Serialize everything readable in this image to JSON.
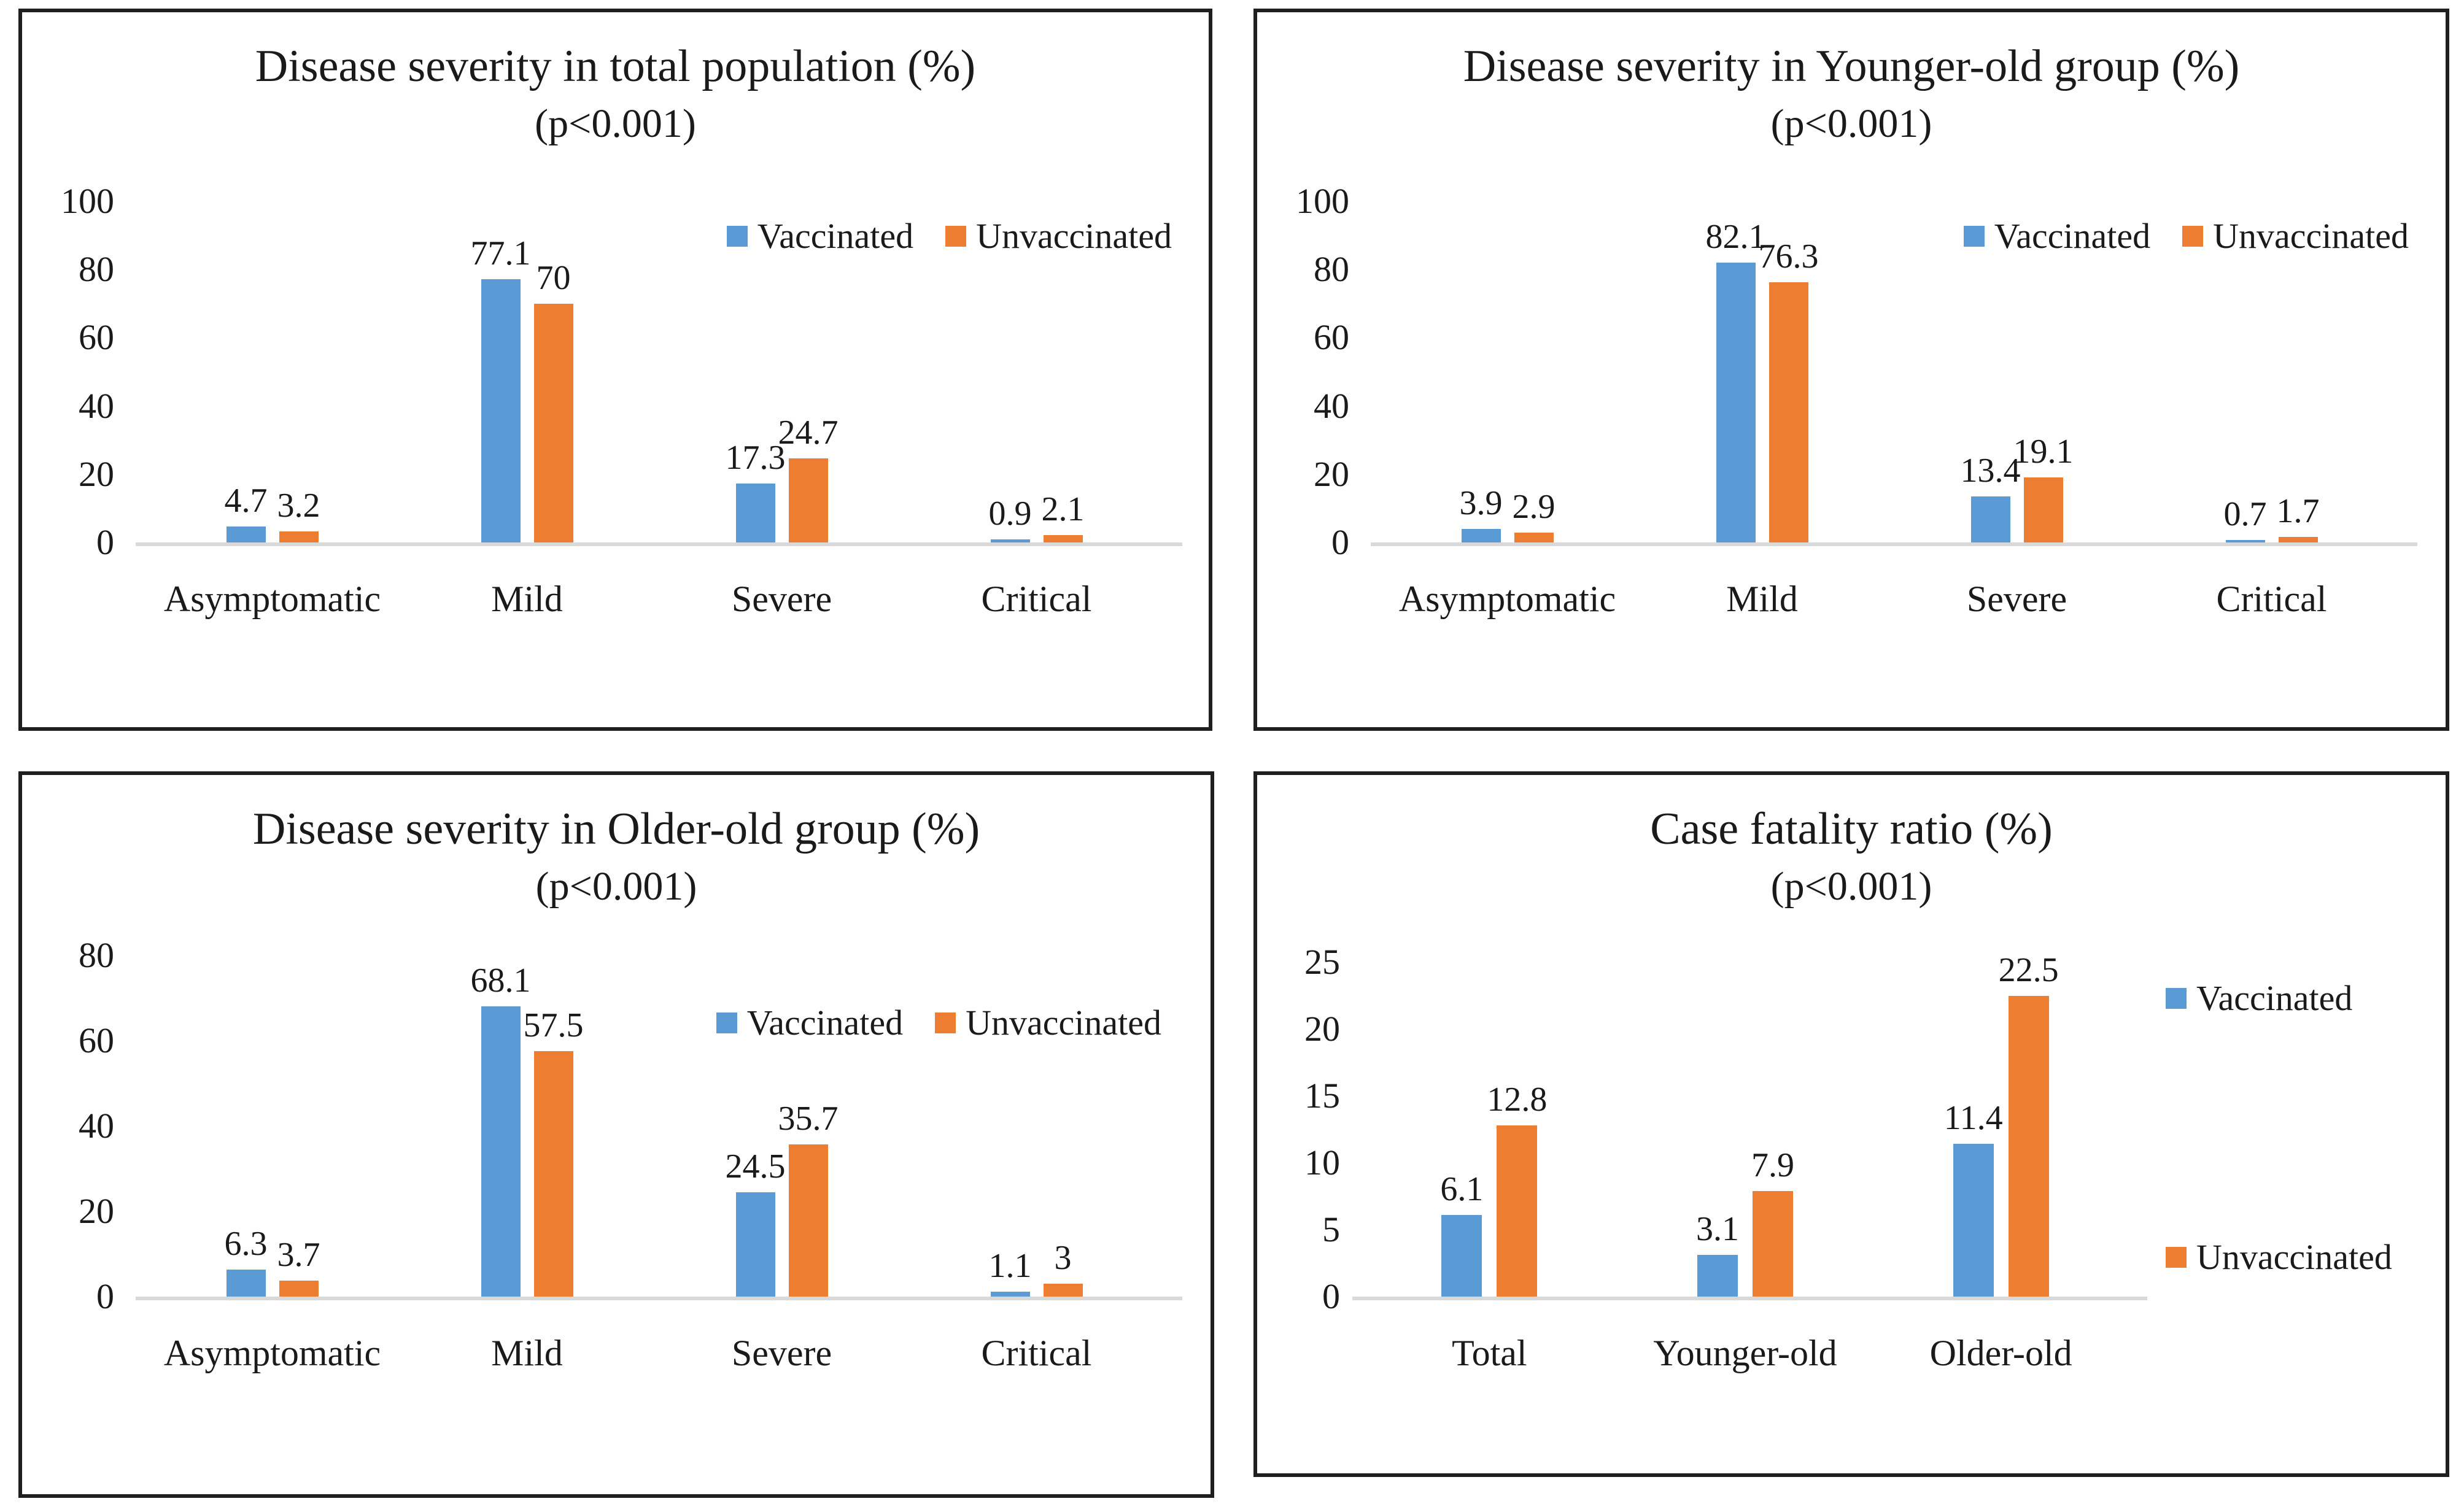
{
  "figure": {
    "background": "#ffffff",
    "panel_border_color": "#1f1f1f"
  },
  "colors": {
    "vaccinated": "#5B9BD5",
    "unvaccinated": "#ED7D31",
    "axis_line": "#D9D9D9",
    "text": "#1A1A1A"
  },
  "chart_data": [
    {
      "type": "bar",
      "title": "Disease severity in total population (%)",
      "subtitle": "(p<0.001)",
      "categories": [
        "Asymptomatic",
        "Mild",
        "Severe",
        "Critical"
      ],
      "series": [
        {
          "name": "Vaccinated",
          "color": "#5B9BD5",
          "values": [
            4.7,
            77.1,
            17.3,
            0.9
          ]
        },
        {
          "name": "Unvaccinated",
          "color": "#ED7D31",
          "values": [
            3.2,
            70,
            24.7,
            2.1
          ]
        }
      ],
      "ylim": [
        0,
        100
      ],
      "yticks": [
        100,
        80,
        60,
        40,
        20,
        0
      ],
      "grid": false,
      "legend_position": "inside-top-right"
    },
    {
      "type": "bar",
      "title": "Disease severity in Younger-old group (%)",
      "subtitle": "(p<0.001)",
      "categories": [
        "Asymptomatic",
        "Mild",
        "Severe",
        "Critical"
      ],
      "series": [
        {
          "name": "Vaccinated",
          "color": "#5B9BD5",
          "values": [
            3.9,
            82.1,
            13.4,
            0.7
          ]
        },
        {
          "name": "Unvaccinated",
          "color": "#ED7D31",
          "values": [
            2.9,
            76.3,
            19.1,
            1.7
          ]
        }
      ],
      "ylim": [
        0,
        100
      ],
      "yticks": [
        100,
        80,
        60,
        40,
        20,
        0
      ],
      "grid": false,
      "legend_position": "inside-top-right"
    },
    {
      "type": "bar",
      "title": "Disease severity in Older-old group (%)",
      "subtitle": "(p<0.001)",
      "categories": [
        "Asymptomatic",
        "Mild",
        "Severe",
        "Critical"
      ],
      "series": [
        {
          "name": "Vaccinated",
          "color": "#5B9BD5",
          "values": [
            6.3,
            68.1,
            24.5,
            1.1
          ]
        },
        {
          "name": "Unvaccinated",
          "color": "#ED7D31",
          "values": [
            3.7,
            57.5,
            35.7,
            3
          ]
        }
      ],
      "ylim": [
        0,
        80
      ],
      "yticks": [
        80,
        60,
        40,
        20,
        0
      ],
      "grid": false,
      "legend_position": "inside-top-right"
    },
    {
      "type": "bar",
      "title": "Case fatality ratio (%)",
      "subtitle": "(p<0.001)",
      "categories": [
        "Total",
        "Younger-old",
        "Older-old"
      ],
      "series": [
        {
          "name": "Vaccinated",
          "color": "#5B9BD5",
          "values": [
            6.1,
            3.1,
            11.4
          ]
        },
        {
          "name": "Unvaccinated",
          "color": "#ED7D31",
          "values": [
            12.8,
            7.9,
            22.5
          ]
        }
      ],
      "ylim": [
        0,
        25
      ],
      "yticks": [
        25,
        20,
        15,
        10,
        5,
        0
      ],
      "grid": false,
      "legend_position": "right-stacked"
    }
  ]
}
